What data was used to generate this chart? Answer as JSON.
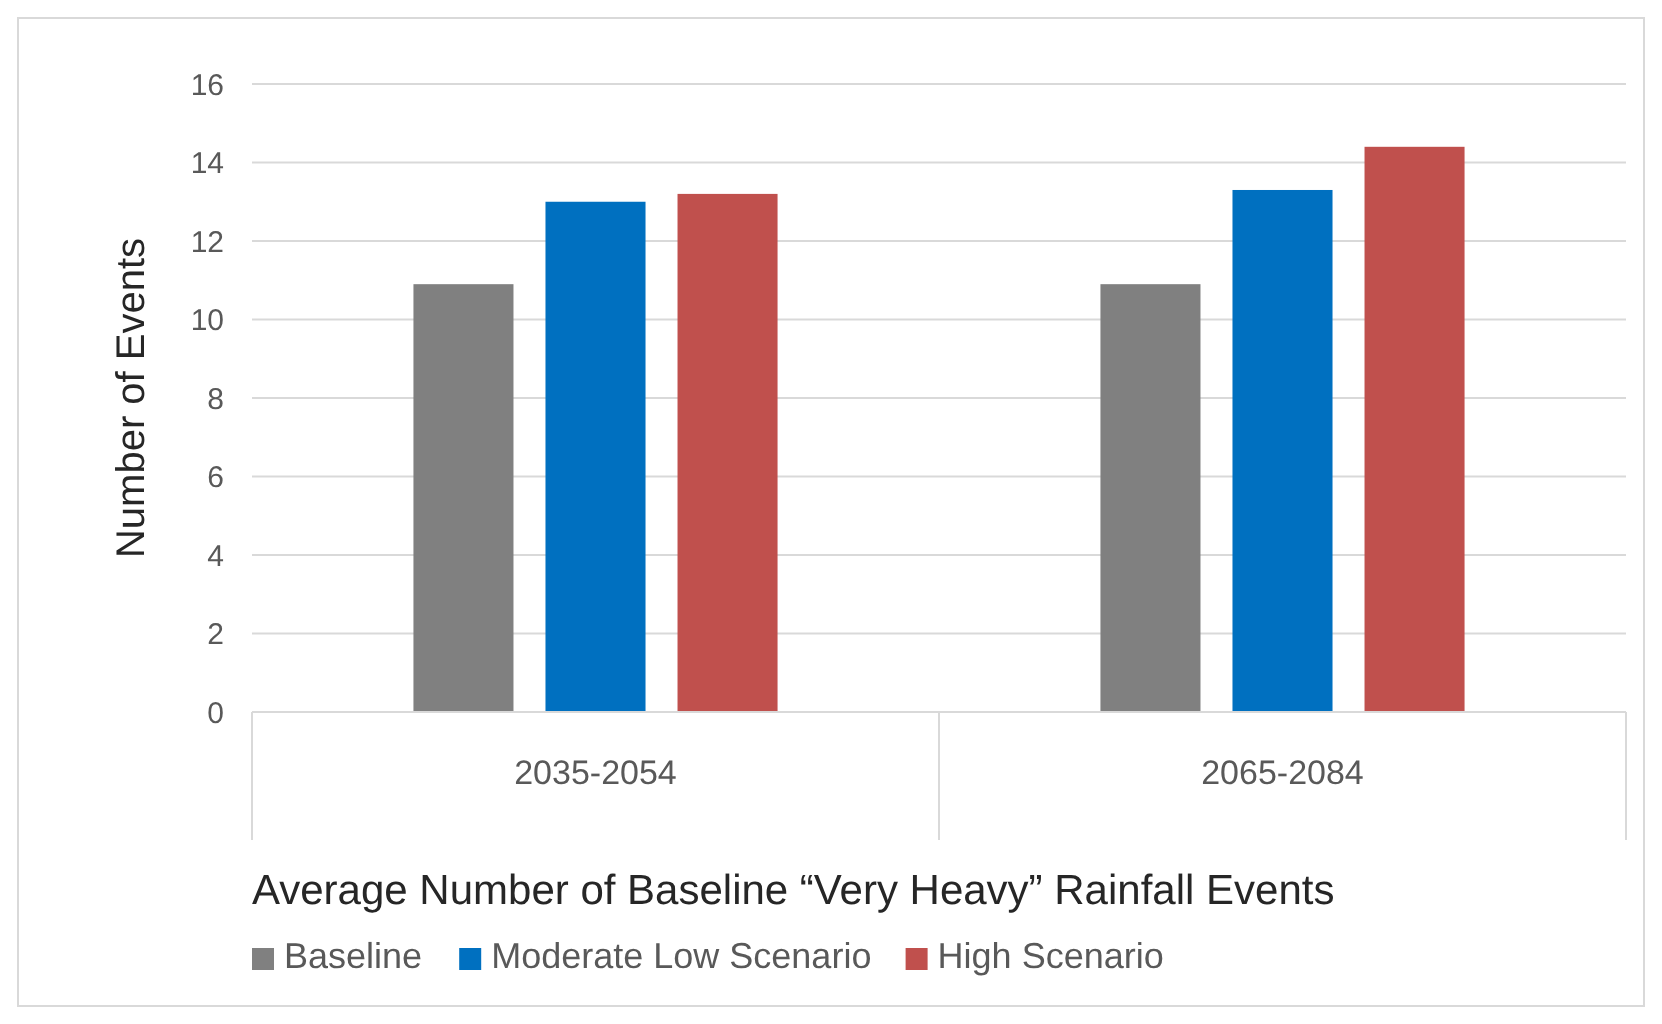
{
  "chart_data": {
    "type": "bar",
    "title": "Average Number of Baseline “Very Heavy” Rainfall Events",
    "ylabel": "Number of Events",
    "categories": [
      "2035-2054",
      "2065-2084"
    ],
    "series": [
      {
        "name": "Baseline",
        "color": "#808080",
        "values": [
          10.9,
          10.9
        ]
      },
      {
        "name": "Moderate Low Scenario",
        "color": "#0070c0",
        "values": [
          13.0,
          13.3
        ]
      },
      {
        "name": "High Scenario",
        "color": "#c0504d",
        "values": [
          13.2,
          14.4
        ]
      }
    ],
    "ylim": [
      0,
      16
    ],
    "yticks": [
      0,
      2,
      4,
      6,
      8,
      10,
      12,
      14,
      16
    ],
    "grid": "y",
    "legend": "bottom"
  }
}
